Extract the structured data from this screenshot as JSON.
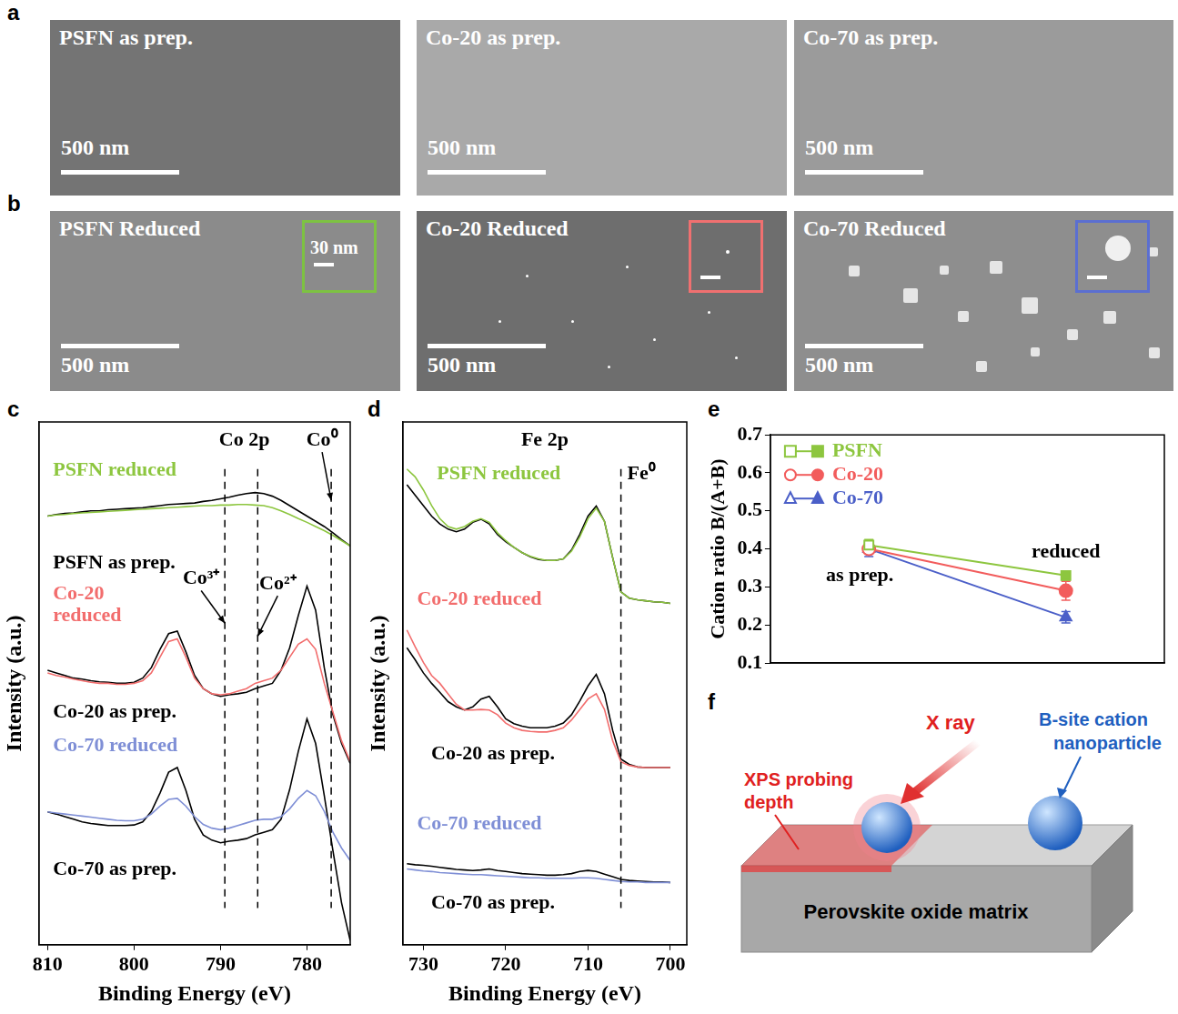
{
  "panels": {
    "a": {
      "letter": "a",
      "images": [
        {
          "label": "PSFN as prep.",
          "scale_bar": "500 nm"
        },
        {
          "label": "Co-20 as prep.",
          "scale_bar": "500 nm"
        },
        {
          "label": "Co-70 as prep.",
          "scale_bar": "500 nm"
        }
      ]
    },
    "b": {
      "letter": "b",
      "images": [
        {
          "label": "PSFN Reduced",
          "scale_bar": "500 nm",
          "inset": {
            "color": "#7dc242",
            "scale_bar": "30 nm"
          }
        },
        {
          "label": "Co-20 Reduced",
          "scale_bar": "500 nm",
          "inset": {
            "color": "#f07070"
          }
        },
        {
          "label": "Co-70 Reduced",
          "scale_bar": "500 nm",
          "inset": {
            "color": "#5b6fd1"
          }
        }
      ]
    },
    "f": {
      "letter": "f",
      "beam": "X ray",
      "layer": "XPS probing depth",
      "particle": "B-site cation nanoparticle",
      "matrix": "Perovskite oxide matrix"
    }
  },
  "chart_data": [
    {
      "panel": "c",
      "type": "line",
      "title": "Co 2p",
      "x_label": "Binding Energy (eV)",
      "y_label": "Intensity (a.u.)",
      "x": [
        810,
        809,
        808,
        807,
        806,
        805,
        804,
        803,
        802,
        801,
        800,
        799,
        798,
        797,
        796,
        795,
        794,
        793,
        792,
        791,
        790,
        789,
        788,
        787,
        786,
        785,
        784,
        783,
        782,
        781,
        780,
        779,
        778,
        777,
        776,
        775
      ],
      "xlim": [
        811,
        775
      ],
      "xticks": [
        810,
        800,
        790,
        780
      ],
      "ylim": [
        0,
        100
      ],
      "tick_labels": "x",
      "grid": false,
      "annotations": [
        {
          "text": "Co⁰",
          "x": 777.2
        },
        {
          "text": "Co³⁺",
          "x": 789.5
        },
        {
          "text": "Co²⁺",
          "x": 785.7
        }
      ],
      "series": [
        {
          "name": "PSFN reduced",
          "color": "#8dc63f",
          "values": [
            82.0,
            82.2,
            82.3,
            82.5,
            82.6,
            82.7,
            82.8,
            82.9,
            83.0,
            83.1,
            83.2,
            83.3,
            83.4,
            83.5,
            83.6,
            83.7,
            83.8,
            83.9,
            84.0,
            84.0,
            84.1,
            84.1,
            84.2,
            84.2,
            84.1,
            84.0,
            83.6,
            83.0,
            82.3,
            81.5,
            80.8,
            80.0,
            79.2,
            78.3,
            77.3,
            76.3
          ]
        },
        {
          "name": "PSFN as prep.",
          "color": "#000000",
          "values": [
            82.0,
            82.3,
            82.5,
            82.6,
            82.8,
            83.0,
            83.0,
            83.2,
            83.3,
            83.4,
            83.5,
            83.6,
            83.8,
            84.0,
            84.2,
            84.3,
            84.4,
            84.5,
            84.8,
            85.0,
            85.3,
            85.6,
            86.0,
            86.3,
            86.5,
            86.3,
            85.8,
            85.0,
            84.0,
            83.0,
            82.0,
            81.0,
            80.0,
            78.8,
            77.5,
            76.3
          ]
        },
        {
          "name": "Co-20 reduced",
          "color": "#f26d6d",
          "values": [
            52.0,
            51.5,
            51.2,
            50.8,
            50.5,
            50.2,
            50.0,
            50.0,
            49.8,
            49.8,
            50.0,
            50.5,
            52.0,
            55.0,
            58.0,
            58.5,
            55.0,
            51.0,
            49.0,
            48.0,
            47.8,
            48.0,
            48.5,
            49.0,
            50.0,
            50.5,
            51.0,
            52.5,
            55.0,
            57.5,
            58.5,
            56.5,
            50.0,
            44.5,
            39.0,
            35.0
          ]
        },
        {
          "name": "Co-20 as prep.",
          "color": "#000000",
          "values": [
            52.5,
            52.0,
            51.5,
            51.0,
            50.8,
            50.5,
            50.3,
            50.2,
            50.0,
            50.0,
            50.2,
            51.0,
            53.0,
            56.5,
            59.5,
            60.0,
            56.0,
            51.5,
            49.0,
            48.0,
            47.5,
            47.8,
            48.0,
            48.3,
            49.0,
            49.5,
            50.0,
            52.5,
            56.8,
            63.0,
            68.6,
            64.0,
            53.0,
            44.0,
            38.5,
            34.7
          ]
        },
        {
          "name": "Co-70 reduced",
          "color": "#7f8fd6",
          "values": [
            25.4,
            25.2,
            25.0,
            24.8,
            24.6,
            24.4,
            24.2,
            24.0,
            23.8,
            23.7,
            23.7,
            24.0,
            25.0,
            26.5,
            27.8,
            28.0,
            26.5,
            24.5,
            23.0,
            22.3,
            22.0,
            22.3,
            22.8,
            23.3,
            23.8,
            24.0,
            24.0,
            24.5,
            26.0,
            28.0,
            29.5,
            28.5,
            25.5,
            21.5,
            18.5,
            16.1
          ]
        },
        {
          "name": "Co-70 as prep.",
          "color": "#000000",
          "values": [
            25.4,
            25.0,
            24.5,
            24.0,
            23.5,
            23.2,
            23.0,
            22.8,
            22.8,
            22.8,
            22.9,
            23.5,
            25.5,
            29.0,
            33.0,
            33.9,
            29.5,
            24.0,
            21.0,
            20.0,
            19.5,
            19.8,
            20.0,
            20.3,
            21.0,
            21.5,
            22.0,
            24.0,
            29.7,
            37.0,
            43.2,
            38.5,
            28.5,
            18.0,
            8.0,
            0.8
          ]
        }
      ]
    },
    {
      "panel": "d",
      "type": "line",
      "title": "Fe 2p",
      "x_label": "Binding Energy (eV)",
      "y_label": "Intensity (a.u.)",
      "x": [
        732,
        731,
        730,
        729,
        728,
        727,
        726,
        725,
        724,
        723,
        722,
        721,
        720,
        719,
        718,
        717,
        716,
        715,
        714,
        713,
        712,
        711,
        710,
        709,
        708,
        707,
        706,
        705,
        704,
        703,
        702,
        701,
        700
      ],
      "xlim": [
        732.5,
        698
      ],
      "xticks": [
        730,
        720,
        710,
        700
      ],
      "ylim": [
        0,
        100
      ],
      "tick_labels": "x",
      "grid": false,
      "annotations": [
        {
          "text": "Fe⁰",
          "x": 706
        }
      ],
      "series": [
        {
          "name": "PSFN reduced",
          "color": "#8dc63f",
          "values": [
            91.0,
            89.5,
            87.0,
            84.0,
            81.5,
            80.0,
            79.5,
            80.0,
            81.0,
            81.5,
            80.8,
            78.8,
            77.3,
            76.0,
            75.0,
            74.3,
            73.8,
            73.5,
            73.5,
            73.8,
            75.3,
            78.0,
            81.5,
            83.5,
            81.0,
            74.0,
            67.5,
            66.3,
            66.0,
            65.8,
            65.6,
            65.5,
            65.3
          ]
        },
        {
          "color": "#000000",
          "values": [
            88.0,
            86.0,
            84.0,
            82.0,
            80.5,
            79.5,
            79.0,
            79.5,
            80.8,
            81.4,
            80.5,
            78.5,
            77.1,
            76.0,
            75.0,
            74.2,
            73.7,
            73.5,
            73.5,
            73.8,
            75.5,
            78.5,
            82.0,
            83.9,
            81.0,
            74.0,
            67.5,
            66.3,
            66.0,
            65.8,
            65.6,
            65.5,
            65.3
          ]
        },
        {
          "name": "Co-20 reduced",
          "color": "#f26d6d",
          "values": [
            60.2,
            57.0,
            54.0,
            51.5,
            50.0,
            48.0,
            46.0,
            44.9,
            44.9,
            45.0,
            44.9,
            44.0,
            42.4,
            41.5,
            41.0,
            40.8,
            40.7,
            40.7,
            41.0,
            41.5,
            43.0,
            45.0,
            47.0,
            48.0,
            45.0,
            39.0,
            35.0,
            34.3,
            34.0,
            33.9,
            33.9,
            33.9,
            33.9
          ]
        },
        {
          "name": "Co-20 as prep.",
          "color": "#000000",
          "values": [
            56.8,
            54.5,
            52.0,
            50.0,
            48.3,
            46.5,
            45.5,
            44.9,
            45.5,
            47.0,
            47.5,
            45.5,
            43.2,
            42.3,
            41.8,
            41.5,
            41.5,
            41.5,
            41.8,
            42.4,
            44.0,
            46.6,
            49.5,
            51.7,
            48.0,
            41.0,
            35.5,
            34.5,
            34.0,
            33.9,
            33.9,
            33.9,
            33.9
          ]
        },
        {
          "name": "Co-70 reduced",
          "color": "#7f8fd6",
          "values": [
            14.5,
            14.3,
            14.1,
            14.0,
            13.8,
            13.7,
            13.6,
            13.5,
            13.4,
            13.4,
            13.3,
            13.2,
            13.1,
            13.0,
            12.9,
            12.8,
            12.8,
            12.7,
            12.7,
            12.7,
            12.7,
            12.8,
            12.8,
            12.7,
            12.5,
            12.3,
            12.1,
            12.0,
            12.0,
            11.9,
            11.9,
            11.9,
            11.9
          ]
        },
        {
          "name": "Co-70 as prep.",
          "color": "#000000",
          "values": [
            15.5,
            15.3,
            15.2,
            15.0,
            14.8,
            14.6,
            14.4,
            14.3,
            14.2,
            14.3,
            14.5,
            14.2,
            14.0,
            13.8,
            13.6,
            13.5,
            13.4,
            13.3,
            13.3,
            13.4,
            13.6,
            14.0,
            14.2,
            14.0,
            13.5,
            13.0,
            12.5,
            12.3,
            12.2,
            12.1,
            12.0,
            12.0,
            11.9
          ]
        }
      ]
    },
    {
      "panel": "e",
      "type": "line",
      "y_label": "Cation ratio B/(A+B)",
      "categories": [
        "as prep.",
        "reduced"
      ],
      "ylim": [
        0.1,
        0.7
      ],
      "yticks": [
        0.1,
        0.2,
        0.3,
        0.4,
        0.5,
        0.6,
        0.7
      ],
      "tick_labels": "y",
      "grid": false,
      "legend": "top-left",
      "series": [
        {
          "name": "PSFN",
          "color": "#8dc63f",
          "marker": "square",
          "values": [
            0.41,
            0.33
          ],
          "errors": [
            0.015,
            0.012
          ]
        },
        {
          "name": "Co-20",
          "color": "#f25c5c",
          "marker": "circle",
          "values": [
            0.4,
            0.29
          ],
          "errors": [
            0.012,
            0.025
          ]
        },
        {
          "name": "Co-70",
          "color": "#4b5fc8",
          "marker": "triangle",
          "values": [
            0.4,
            0.22
          ],
          "errors": [
            0.02,
            0.015
          ]
        }
      ]
    }
  ]
}
